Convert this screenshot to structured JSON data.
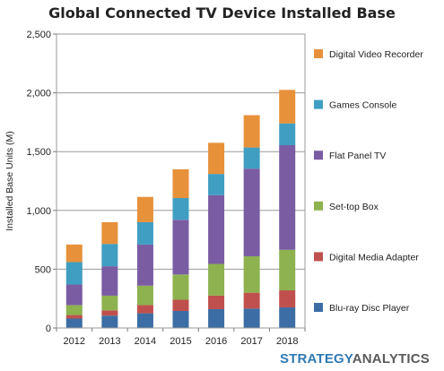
{
  "chart_data": {
    "type": "bar",
    "stacked": true,
    "title": "Global Connected TV Device Installed Base",
    "xlabel": "",
    "ylabel": "Installed Base Units (M)",
    "ylim": [
      0,
      2500
    ],
    "yticks": [
      0,
      500,
      1000,
      1500,
      2000,
      2500
    ],
    "ytick_labels": [
      "0",
      "500",
      "1,000",
      "1,500",
      "2,000",
      "2,500"
    ],
    "grid": true,
    "legend_position": "right",
    "categories": [
      "2012",
      "2013",
      "2014",
      "2015",
      "2016",
      "2017",
      "2018"
    ],
    "series": [
      {
        "name": "Blu-ray Disc Player",
        "color": "#3c6ea5",
        "values": [
          80,
          105,
          125,
          145,
          160,
          165,
          175
        ]
      },
      {
        "name": "Digital Media Adapter",
        "color": "#c0504d",
        "values": [
          30,
          45,
          70,
          95,
          115,
          135,
          145
        ]
      },
      {
        "name": "Set-top Box",
        "color": "#8db24f",
        "values": [
          85,
          125,
          165,
          215,
          270,
          310,
          345
        ]
      },
      {
        "name": "Flat Panel TV",
        "color": "#7a5ca3",
        "values": [
          175,
          250,
          350,
          465,
          585,
          745,
          890
        ]
      },
      {
        "name": "Games Console",
        "color": "#3f9ec2",
        "values": [
          190,
          190,
          190,
          185,
          180,
          180,
          185
        ]
      },
      {
        "name": "Digital Video Recorder",
        "color": "#e7913a",
        "values": [
          150,
          185,
          215,
          245,
          265,
          275,
          285
        ]
      }
    ]
  },
  "brand": {
    "part1": "STRATEGY",
    "part2": "ANALYTICS"
  }
}
